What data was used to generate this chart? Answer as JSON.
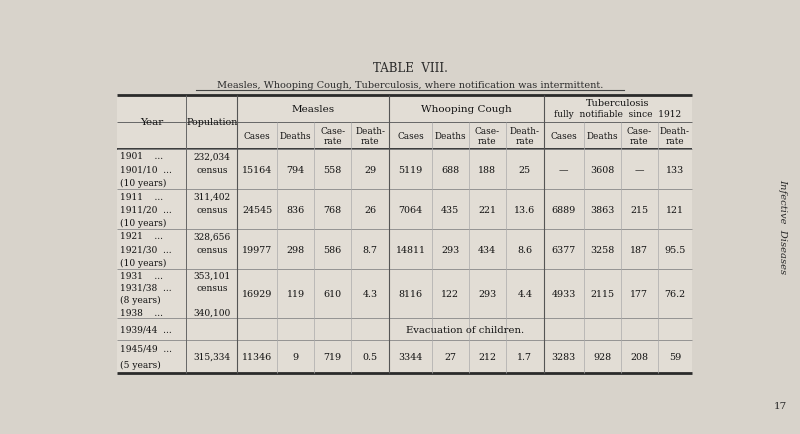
{
  "title": "TABLE  VIII.",
  "subtitle": "Measles, Whooping Cough, Tuberculosis, where notification was intermittent.",
  "background_color": "#d8d3cb",
  "table_bg": "#e5e0d8",
  "side_text": "Infective  Diseases",
  "page_number": "17",
  "rows": [
    {
      "year_lines": [
        "1901    ...",
        "1901/10  ...",
        "(10 years)"
      ],
      "pop_lines": [
        "232,034",
        "census",
        ""
      ],
      "data": [
        "15164",
        "794",
        "558",
        "29",
        "5119",
        "688",
        "188",
        "25",
        "—",
        "3608",
        "—",
        "133"
      ]
    },
    {
      "year_lines": [
        "1911    ...",
        "1911/20  ...",
        "(10 years)"
      ],
      "pop_lines": [
        "311,402",
        "census",
        ""
      ],
      "data": [
        "24545",
        "836",
        "768",
        "26",
        "7064",
        "435",
        "221",
        "13.6",
        "6889",
        "3863",
        "215",
        "121"
      ]
    },
    {
      "year_lines": [
        "1921    ...",
        "1921/30  ...",
        "(10 years)"
      ],
      "pop_lines": [
        "328,656",
        "census",
        ""
      ],
      "data": [
        "19977",
        "298",
        "586",
        "8.7",
        "14811",
        "293",
        "434",
        "8.6",
        "6377",
        "3258",
        "187",
        "95.5"
      ]
    },
    {
      "year_lines": [
        "1931    ...",
        "1931/38  ...",
        "(8 years)",
        "1938    ..."
      ],
      "pop_lines": [
        "353,101",
        "census",
        "",
        "340,100"
      ],
      "data": [
        "16929",
        "119",
        "610",
        "4.3",
        "8116",
        "122",
        "293",
        "4.4",
        "4933",
        "2115",
        "177",
        "76.2"
      ]
    },
    {
      "year_lines": [
        "1939/44  ..."
      ],
      "pop_lines": [
        ""
      ],
      "data": [
        "",
        "",
        "",
        "",
        "Evacuation of children.",
        "",
        "",
        "",
        "",
        "",
        "",
        ""
      ],
      "evacuation": true
    },
    {
      "year_lines": [
        "1945/49  ...",
        "(5 years)"
      ],
      "pop_lines": [
        "315,334",
        ""
      ],
      "data": [
        "11346",
        "9",
        "719",
        "0.5",
        "3344",
        "27",
        "212",
        "1.7",
        "3283",
        "928",
        "208",
        "59"
      ]
    }
  ]
}
